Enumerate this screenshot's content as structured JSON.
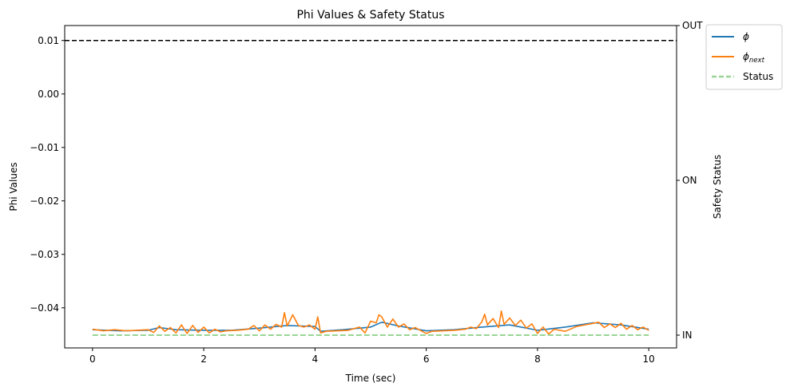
{
  "chart_data": {
    "type": "line",
    "title": "Phi Values & Safety Status",
    "xlabel": "Time (sec)",
    "ylabel": "Phi Values",
    "y2label": "Safety Status",
    "xlim": [
      -0.5,
      10.5
    ],
    "ylim": [
      -0.0475,
      0.0128
    ],
    "xticks": [
      0,
      2,
      4,
      6,
      8,
      10
    ],
    "xtick_labels": [
      "0",
      "2",
      "4",
      "6",
      "8",
      "10"
    ],
    "yticks": [
      0.01,
      0.0,
      -0.01,
      -0.02,
      -0.03,
      -0.04
    ],
    "ytick_labels": [
      "0.01",
      "0.00",
      "−0.01",
      "−0.02",
      "−0.03",
      "−0.04"
    ],
    "y2_categories": [
      "IN",
      "ON",
      "OUT"
    ],
    "y2_values": [
      0,
      1,
      2
    ],
    "threshold": {
      "y": 0.01,
      "style": "dashed",
      "color": "#000000"
    },
    "grid": false,
    "legend_position": "outside-top-right",
    "series": [
      {
        "name": "ϕ",
        "legend_base": "ϕ",
        "legend_sub": "",
        "color": "#1f77b4",
        "axis": "left",
        "x": [
          0.0,
          0.5,
          1.0,
          1.2,
          1.5,
          2.0,
          2.5,
          3.0,
          3.5,
          4.0,
          4.1,
          4.5,
          5.0,
          5.2,
          5.5,
          6.0,
          6.5,
          7.0,
          7.5,
          8.0,
          8.5,
          9.0,
          9.5,
          10.0
        ],
        "y": [
          -0.0441,
          -0.0443,
          -0.0442,
          -0.0437,
          -0.0441,
          -0.0442,
          -0.0442,
          -0.0438,
          -0.0433,
          -0.0435,
          -0.0444,
          -0.0441,
          -0.0436,
          -0.0427,
          -0.0434,
          -0.0443,
          -0.0441,
          -0.0436,
          -0.0432,
          -0.0442,
          -0.0436,
          -0.0428,
          -0.0432,
          -0.044
        ]
      },
      {
        "name": "ϕnext",
        "legend_base": "ϕ",
        "legend_sub": "next",
        "color": "#ff7f0e",
        "axis": "left",
        "x": [
          0.0,
          0.2,
          0.4,
          0.6,
          0.8,
          1.0,
          1.1,
          1.2,
          1.3,
          1.4,
          1.5,
          1.6,
          1.7,
          1.8,
          1.9,
          2.0,
          2.1,
          2.2,
          2.3,
          2.4,
          2.6,
          2.8,
          2.9,
          3.0,
          3.1,
          3.2,
          3.3,
          3.4,
          3.45,
          3.5,
          3.6,
          3.7,
          3.8,
          3.9,
          4.0,
          4.05,
          4.1,
          4.2,
          4.4,
          4.6,
          4.8,
          4.9,
          5.0,
          5.1,
          5.15,
          5.2,
          5.3,
          5.4,
          5.5,
          5.6,
          5.7,
          5.8,
          6.0,
          6.1,
          6.3,
          6.5,
          6.7,
          6.8,
          6.9,
          7.0,
          7.05,
          7.1,
          7.2,
          7.3,
          7.35,
          7.4,
          7.5,
          7.6,
          7.7,
          7.8,
          7.9,
          8.0,
          8.1,
          8.2,
          8.3,
          8.5,
          8.7,
          8.9,
          9.0,
          9.1,
          9.2,
          9.3,
          9.4,
          9.5,
          9.6,
          9.7,
          9.8,
          9.9,
          10.0
        ],
        "y": [
          -0.044,
          -0.0443,
          -0.0441,
          -0.0443,
          -0.0442,
          -0.0441,
          -0.0446,
          -0.0434,
          -0.0444,
          -0.0437,
          -0.0447,
          -0.0432,
          -0.0448,
          -0.0433,
          -0.0446,
          -0.0436,
          -0.0447,
          -0.044,
          -0.0445,
          -0.0443,
          -0.0442,
          -0.044,
          -0.0433,
          -0.0443,
          -0.0432,
          -0.044,
          -0.0431,
          -0.0436,
          -0.0409,
          -0.0434,
          -0.0413,
          -0.0433,
          -0.0436,
          -0.0432,
          -0.044,
          -0.0417,
          -0.0447,
          -0.0444,
          -0.0443,
          -0.0442,
          -0.0436,
          -0.0447,
          -0.0425,
          -0.0428,
          -0.0413,
          -0.0417,
          -0.0436,
          -0.0421,
          -0.0436,
          -0.043,
          -0.0441,
          -0.0437,
          -0.0448,
          -0.0444,
          -0.0443,
          -0.0442,
          -0.044,
          -0.0436,
          -0.0439,
          -0.0426,
          -0.0412,
          -0.0432,
          -0.042,
          -0.0437,
          -0.0406,
          -0.0431,
          -0.0419,
          -0.0433,
          -0.0423,
          -0.0438,
          -0.043,
          -0.0448,
          -0.0436,
          -0.0449,
          -0.044,
          -0.0444,
          -0.0435,
          -0.0431,
          -0.0429,
          -0.0427,
          -0.0437,
          -0.043,
          -0.0437,
          -0.0429,
          -0.044,
          -0.0433,
          -0.0441,
          -0.0436,
          -0.0442
        ]
      },
      {
        "name": "Status",
        "legend_base": "Status",
        "legend_sub": "",
        "color": "#98d594",
        "style": "dashed",
        "axis": "right",
        "x": [
          0,
          10
        ],
        "y": [
          0,
          0
        ]
      }
    ]
  },
  "colors": {
    "phi": "#1f77b4",
    "phi_next": "#ff7f0e",
    "status": "#98d594",
    "threshold": "#000000"
  }
}
